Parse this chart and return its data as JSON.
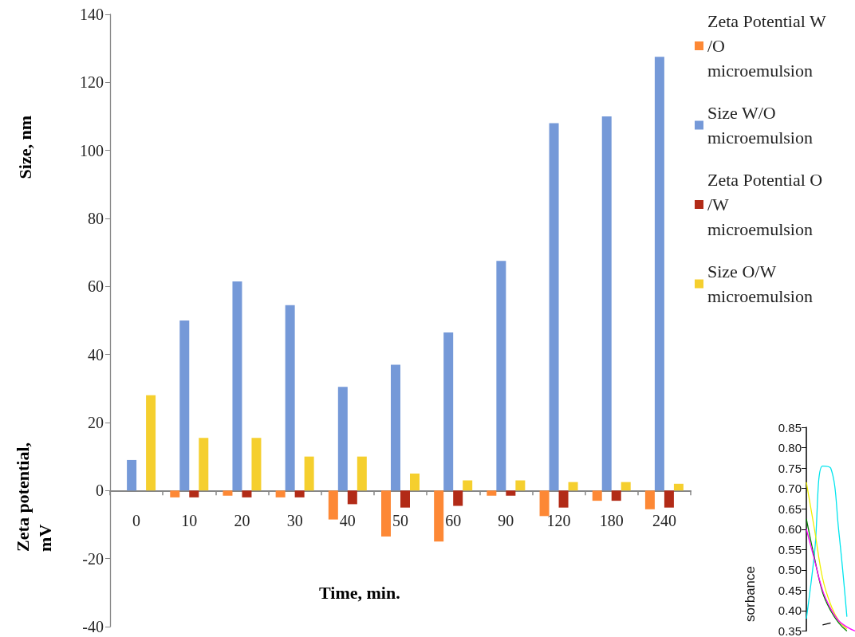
{
  "chart_data": [
    {
      "type": "bar",
      "xlabel": "Time, min.",
      "ylabel": "Size, nm",
      "annotations": [
        "Zeta potential, mV"
      ],
      "categories": [
        "0",
        "10",
        "20",
        "30",
        "40",
        "50",
        "60",
        "90",
        "120",
        "180",
        "240"
      ],
      "series": [
        {
          "name": "Zeta Potential W/O microemulsion",
          "color": "#fd8835",
          "values": [
            null,
            -2,
            -1.5,
            -2,
            -8.5,
            -13.5,
            -15,
            -1.5,
            -7.5,
            -3,
            -5.5
          ]
        },
        {
          "name": "Size W/O microemulsion",
          "color": "#7599d8",
          "values": [
            9,
            50,
            61.5,
            54.5,
            30.5,
            37,
            46.5,
            67.5,
            108,
            110,
            127.5
          ]
        },
        {
          "name": "Zeta Potential O/W microemulsion",
          "color": "#b22b17",
          "values": [
            null,
            -2,
            -2,
            -2,
            -4,
            -5,
            -4.5,
            -1.5,
            -5,
            -3,
            -5
          ]
        },
        {
          "name": "Size O/W microemulsion",
          "color": "#f5cf2e",
          "values": [
            28,
            15.5,
            15.5,
            10,
            10,
            5,
            3,
            3,
            2.5,
            2.5,
            2
          ]
        }
      ],
      "ylim": [
        -40,
        140
      ],
      "yticks": [
        -40,
        -20,
        0,
        20,
        40,
        60,
        80,
        100,
        120,
        140
      ],
      "grid": false,
      "legend": "top right"
    },
    {
      "type": "line",
      "ylabel": "sorbance",
      "categories": [
        null,
        null,
        null,
        null,
        null,
        null,
        null
      ],
      "series": [
        {
          "color": "#00e5ee",
          "values": [
            0.38,
            0.54,
            0.755,
            0.75,
            0.595,
            0.385,
            null
          ]
        },
        {
          "color": "#f0f000",
          "values": [
            0.715,
            0.6,
            0.48,
            0.415,
            0.375,
            0.355,
            null
          ]
        },
        {
          "color": "#008000",
          "values": [
            0.625,
            0.53,
            0.445,
            0.4,
            0.37,
            0.35,
            null
          ]
        },
        {
          "color": "#ff00ff",
          "values": [
            0.6,
            0.525,
            0.45,
            0.405,
            0.375,
            0.36,
            0.35
          ]
        },
        {
          "color": "#000000",
          "values": [
            null,
            null,
            0.365,
            0.37,
            null,
            null,
            null
          ]
        }
      ],
      "ylim": [
        0.35,
        0.85
      ],
      "yticks": [
        {
          "value": 0.35,
          "label": "0.35"
        },
        {
          "value": 0.4,
          "label": "0.40"
        },
        {
          "value": 0.45,
          "label": "0.45"
        },
        {
          "value": 0.5,
          "label": "0.50"
        },
        {
          "value": 0.55,
          "label": "0.55"
        },
        {
          "value": 0.6,
          "label": "0.60"
        },
        {
          "value": 0.65,
          "label": "0.65"
        },
        {
          "value": 0.7,
          "label": "0.70"
        },
        {
          "value": 0.75,
          "label": "0.75"
        },
        {
          "value": 0.8,
          "label": "0.80"
        },
        {
          "value": 0.85,
          "label": "0.85"
        }
      ],
      "grid": false,
      "legend": false,
      "marker": "none"
    }
  ]
}
